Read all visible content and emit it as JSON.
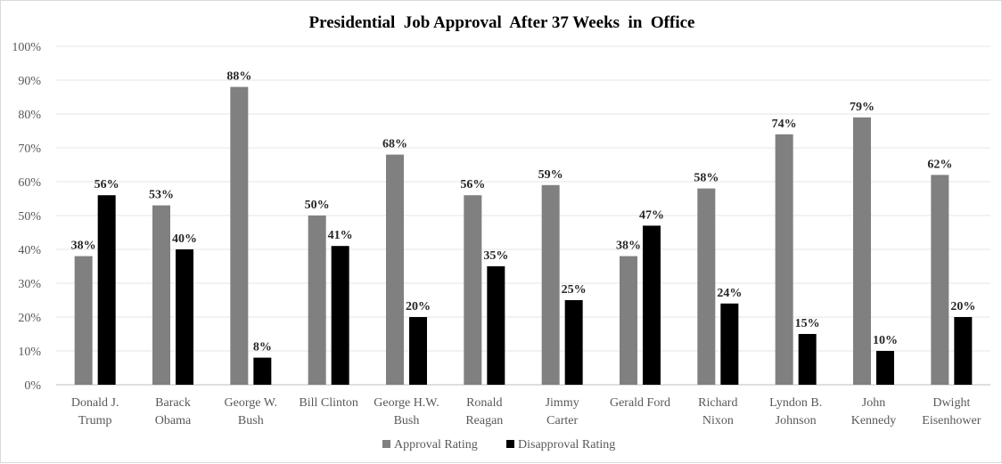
{
  "chart_data": {
    "type": "bar",
    "title": "Presidential  Job Approval  After 37 Weeks  in  Office",
    "categories": [
      [
        "Donald J.",
        "Trump"
      ],
      [
        "Barack",
        "Obama"
      ],
      [
        "George W.",
        "Bush"
      ],
      [
        "Bill Clinton"
      ],
      [
        "George H.W.",
        "Bush"
      ],
      [
        "Ronald",
        "Reagan"
      ],
      [
        "Jimmy",
        "Carter"
      ],
      [
        "Gerald Ford"
      ],
      [
        "Richard",
        "Nixon"
      ],
      [
        "Lyndon B.",
        "Johnson"
      ],
      [
        "John",
        "Kennedy"
      ],
      [
        "Dwight",
        "Eisenhower"
      ]
    ],
    "series": [
      {
        "name": "Approval Rating",
        "color": "#808080",
        "values": [
          38,
          53,
          88,
          50,
          68,
          56,
          59,
          38,
          58,
          74,
          79,
          62
        ]
      },
      {
        "name": "Disapproval Rating",
        "color": "#000000",
        "values": [
          56,
          40,
          8,
          41,
          20,
          35,
          25,
          47,
          24,
          15,
          10,
          20
        ]
      }
    ],
    "ylim": [
      0,
      100
    ],
    "yticks": [
      "0%",
      "10%",
      "20%",
      "30%",
      "40%",
      "50%",
      "60%",
      "70%",
      "80%",
      "90%",
      "100%"
    ],
    "value_suffix": "%",
    "grid": true,
    "legend_position": "bottom"
  }
}
